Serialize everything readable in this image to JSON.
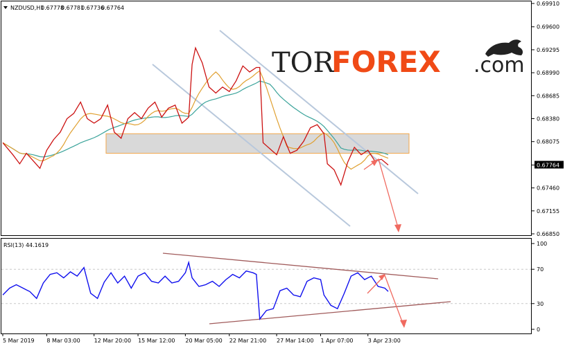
{
  "chart_data": [
    {
      "type": "line",
      "header": {
        "symbol": "NZDUSD,H1",
        "ohlc": [
          "0.67778",
          "0.67781",
          "0.67736",
          "0.67764"
        ]
      },
      "current_price_label": "0.67764",
      "ylim": [
        0.6685,
        0.6991
      ],
      "y_ticks": [
        "0.69910",
        "0.69600",
        "0.69295",
        "0.68990",
        "0.68685",
        "0.68380",
        "0.68075",
        "0.67764",
        "0.67460",
        "0.67155",
        "0.66850"
      ],
      "y_tick_values": [
        0.6991,
        0.696,
        0.69295,
        0.6899,
        0.68685,
        0.6838,
        0.68075,
        0.67764,
        0.6746,
        0.67155,
        0.6685
      ],
      "x_ticks": [
        "5 Mar 2019",
        "8 Mar 03:00",
        "12 Mar 20:00",
        "15 Mar 12:00",
        "20 Mar 05:00",
        "22 Mar 21:00",
        "27 Mar 14:00",
        "1 Apr 07:00",
        "3 Apr 23:00"
      ],
      "x_tick_index": [
        0,
        13,
        27,
        40,
        54,
        67,
        81,
        94,
        108
      ],
      "n_points": 115,
      "price_keypoints": [
        [
          0,
          0.6806
        ],
        [
          3,
          0.679
        ],
        [
          5,
          0.6778
        ],
        [
          7,
          0.6792
        ],
        [
          9,
          0.6782
        ],
        [
          11,
          0.6772
        ],
        [
          13,
          0.6796
        ],
        [
          15,
          0.681
        ],
        [
          17,
          0.682
        ],
        [
          19,
          0.6838
        ],
        [
          21,
          0.6845
        ],
        [
          23,
          0.686
        ],
        [
          25,
          0.6838
        ],
        [
          27,
          0.6832
        ],
        [
          29,
          0.6838
        ],
        [
          31,
          0.6856
        ],
        [
          33,
          0.682
        ],
        [
          35,
          0.6812
        ],
        [
          37,
          0.6838
        ],
        [
          39,
          0.6846
        ],
        [
          41,
          0.6838
        ],
        [
          43,
          0.6852
        ],
        [
          45,
          0.686
        ],
        [
          47,
          0.684
        ],
        [
          49,
          0.6852
        ],
        [
          51,
          0.6856
        ],
        [
          53,
          0.6832
        ],
        [
          55,
          0.684
        ],
        [
          56,
          0.691
        ],
        [
          57,
          0.6932
        ],
        [
          59,
          0.6912
        ],
        [
          61,
          0.688
        ],
        [
          63,
          0.6872
        ],
        [
          65,
          0.688
        ],
        [
          67,
          0.6874
        ],
        [
          69,
          0.6888
        ],
        [
          71,
          0.6908
        ],
        [
          73,
          0.69
        ],
        [
          75,
          0.6906
        ],
        [
          76,
          0.6906
        ],
        [
          77,
          0.6806
        ],
        [
          79,
          0.6798
        ],
        [
          81,
          0.679
        ],
        [
          83,
          0.6814
        ],
        [
          85,
          0.6792
        ],
        [
          87,
          0.6796
        ],
        [
          89,
          0.6808
        ],
        [
          91,
          0.6826
        ],
        [
          93,
          0.683
        ],
        [
          95,
          0.6818
        ],
        [
          96,
          0.6778
        ],
        [
          98,
          0.677
        ],
        [
          100,
          0.675
        ],
        [
          102,
          0.678
        ],
        [
          104,
          0.68
        ],
        [
          106,
          0.679
        ],
        [
          108,
          0.6796
        ],
        [
          110,
          0.6782
        ],
        [
          112,
          0.6784
        ],
        [
          114,
          0.67764
        ]
      ],
      "series": [
        {
          "name": "",
          "color": "#cc1111",
          "role": "price"
        },
        {
          "name": "",
          "color": "#e0a030",
          "role": "fast moving average"
        },
        {
          "name": "",
          "color": "#3aa39a",
          "role": "slow moving average"
        }
      ],
      "support_zone": [
        0.6792,
        0.6818
      ],
      "channel_color": "#b8c8dc",
      "forecast_color": "#f06a60"
    },
    {
      "type": "line",
      "header": {
        "label": "RSI(13) 44.1619"
      },
      "ylim": [
        0,
        100
      ],
      "y_ticks": [
        "100",
        "70",
        "30",
        "0"
      ],
      "y_tick_values": [
        100,
        70,
        30,
        0
      ],
      "levels": [
        70,
        30
      ],
      "rsi_keypoints": [
        [
          0,
          40
        ],
        [
          2,
          48
        ],
        [
          4,
          52
        ],
        [
          6,
          48
        ],
        [
          8,
          44
        ],
        [
          10,
          36
        ],
        [
          12,
          54
        ],
        [
          14,
          64
        ],
        [
          16,
          66
        ],
        [
          18,
          60
        ],
        [
          20,
          67
        ],
        [
          22,
          62
        ],
        [
          24,
          72
        ],
        [
          26,
          42
        ],
        [
          28,
          36
        ],
        [
          30,
          55
        ],
        [
          32,
          66
        ],
        [
          34,
          54
        ],
        [
          36,
          62
        ],
        [
          38,
          48
        ],
        [
          40,
          62
        ],
        [
          42,
          66
        ],
        [
          44,
          56
        ],
        [
          46,
          54
        ],
        [
          48,
          62
        ],
        [
          50,
          54
        ],
        [
          52,
          56
        ],
        [
          54,
          66
        ],
        [
          55,
          78
        ],
        [
          56,
          60
        ],
        [
          58,
          50
        ],
        [
          60,
          52
        ],
        [
          62,
          56
        ],
        [
          64,
          50
        ],
        [
          66,
          58
        ],
        [
          68,
          64
        ],
        [
          70,
          60
        ],
        [
          72,
          68
        ],
        [
          74,
          66
        ],
        [
          75,
          64
        ],
        [
          76,
          12
        ],
        [
          78,
          22
        ],
        [
          80,
          24
        ],
        [
          82,
          45
        ],
        [
          84,
          48
        ],
        [
          86,
          40
        ],
        [
          88,
          38
        ],
        [
          90,
          56
        ],
        [
          92,
          60
        ],
        [
          94,
          58
        ],
        [
          95,
          40
        ],
        [
          97,
          28
        ],
        [
          99,
          24
        ],
        [
          101,
          42
        ],
        [
          103,
          62
        ],
        [
          105,
          66
        ],
        [
          107,
          58
        ],
        [
          109,
          62
        ],
        [
          111,
          50
        ],
        [
          113,
          48
        ],
        [
          114,
          44.16
        ]
      ],
      "line_color": "#1010ee",
      "trendline_color": "#a05a5a",
      "forecast_color": "#f06a60"
    }
  ],
  "watermark": {
    "part1": "TOR",
    "part2": "FOREX",
    "part3": ".com"
  }
}
